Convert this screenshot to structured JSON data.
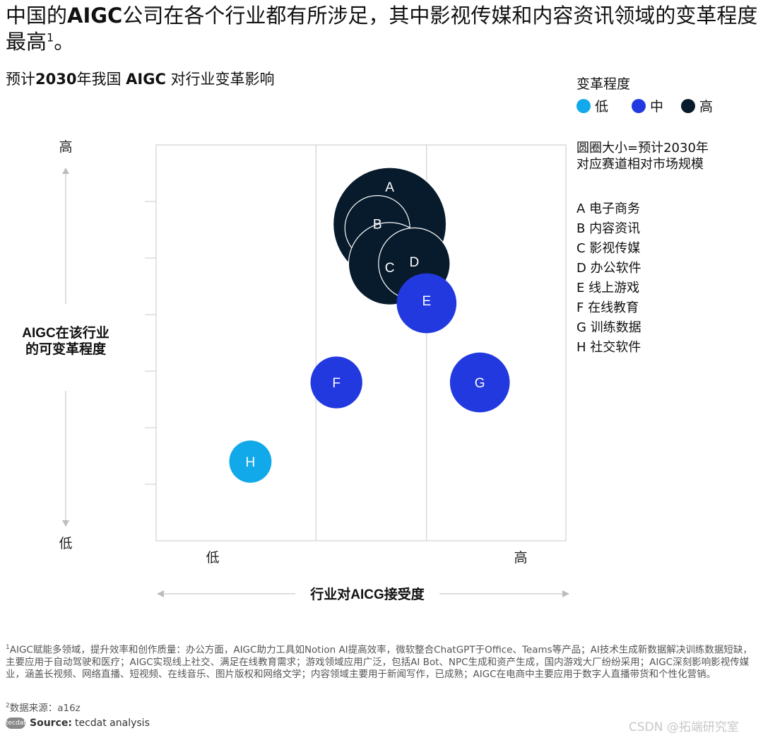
{
  "header": {
    "title_parts": [
      {
        "text": "中国的",
        "bold": false
      },
      {
        "text": "AIGC",
        "bold": true
      },
      {
        "text": "公司在各个行业都有所涉足，其中影视传媒和内容资讯领域的变革程度最高",
        "bold": false
      }
    ],
    "title_sup": "1",
    "title_end": "。",
    "subtitle_parts": [
      {
        "text": "预计",
        "bold": false
      },
      {
        "text": "2030",
        "bold": true
      },
      {
        "text": "年我国 ",
        "bold": false
      },
      {
        "text": "AIGC",
        "bold": true
      },
      {
        "text": " 对行业变革影响",
        "bold": false
      }
    ]
  },
  "legend": {
    "title": "变革程度",
    "items": [
      {
        "label": "低",
        "color": "#12A9EA"
      },
      {
        "label": "中",
        "color": "#2339E0"
      },
      {
        "label": "高",
        "color": "#071B2C"
      }
    ]
  },
  "size_note": [
    "圆圈大小=预计2030年",
    "对应赛道相对市场规模"
  ],
  "industries": [
    "A 电子商务",
    "B 内容资讯",
    "C 影视传媒",
    "D 办公软件",
    "E 线上游戏",
    "F 在线教育",
    "G 训练数据",
    "H 社交软件"
  ],
  "chart_data": {
    "type": "scatter",
    "subtype": "bubble",
    "xlabel": "行业对AICG接受度",
    "ylabel": [
      "AIGC在该行业",
      "的可变革程度"
    ],
    "x_ticks": [
      "低",
      "高"
    ],
    "y_ticks": [
      "高",
      "低"
    ],
    "xlim": [
      0,
      10
    ],
    "ylim": [
      0,
      10
    ],
    "grid": "vertical lines at x≈3.9 and x≈6.6",
    "legend_position": "top-right",
    "points": [
      {
        "label": "A",
        "x": 5.7,
        "y": 8.0,
        "size": 100,
        "level": "高"
      },
      {
        "label": "B",
        "x": 5.4,
        "y": 7.9,
        "size": 33,
        "level": "高"
      },
      {
        "label": "C",
        "x": 5.7,
        "y": 7.0,
        "size": 53,
        "level": "高"
      },
      {
        "label": "D",
        "x": 6.3,
        "y": 7.0,
        "size": 40,
        "level": "高"
      },
      {
        "label": "E",
        "x": 6.6,
        "y": 6.0,
        "size": 28,
        "level": "中"
      },
      {
        "label": "F",
        "x": 4.4,
        "y": 4.0,
        "size": 21,
        "level": "中"
      },
      {
        "label": "G",
        "x": 7.9,
        "y": 4.0,
        "size": 28,
        "level": "中"
      },
      {
        "label": "H",
        "x": 2.3,
        "y": 2.0,
        "size": 14,
        "level": "低"
      }
    ]
  },
  "footnotes": {
    "note1_sup": "1",
    "note1": "AIGC赋能多领域，提升效率和创作质量：办公方面，AIGC助力工具如Notion AI提高效率，微软整合ChatGPT于Office、Teams等产品；AI技术生成新数据解决训练数据短缺，主要应用于自动驾驶和医疗；AIGC实现线上社交、满足在线教育需求；游戏领域应用广泛，包括AI Bot、NPC生成和资产生成，国内游戏大厂纷纷采用；AIGC深刻影响影视传媒业，涵盖长视频、网络直播、短视频、在线音乐、图片版权和网络文学；内容领域主要用于新闻写作，已成熟；AIGC在电商中主要应用于数字人直播带货和个性化营销。",
    "note2_sup": "2",
    "note2": "数据来源：a16z",
    "source_logo": "tecdat",
    "source_label": "Source:",
    "source_text": "tecdat analysis",
    "watermark": "CSDN @拓端研究室"
  }
}
